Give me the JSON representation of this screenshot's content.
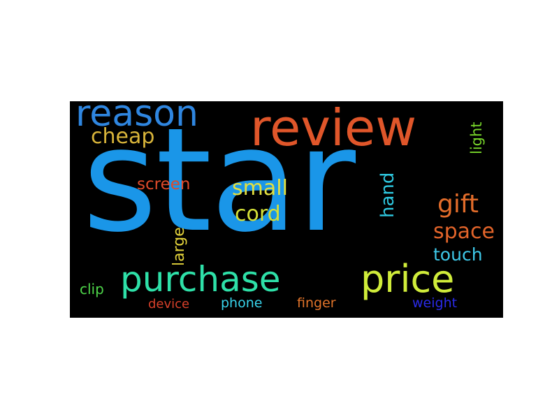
{
  "wordcloud": {
    "background": "#000000",
    "words": [
      {
        "text": "star",
        "color": "#1a96e8",
        "orientation": "horizontal"
      },
      {
        "text": "review",
        "color": "#e0562a",
        "orientation": "horizontal"
      },
      {
        "text": "reason",
        "color": "#2f86e0",
        "orientation": "horizontal"
      },
      {
        "text": "cheap",
        "color": "#d8b43a",
        "orientation": "horizontal"
      },
      {
        "text": "light",
        "color": "#78d62a",
        "orientation": "vertical"
      },
      {
        "text": "screen",
        "color": "#de4a2a",
        "orientation": "horizontal"
      },
      {
        "text": "small",
        "color": "#e2e040",
        "orientation": "horizontal"
      },
      {
        "text": "hand",
        "color": "#2ec8e0",
        "orientation": "vertical"
      },
      {
        "text": "gift",
        "color": "#e26c2a",
        "orientation": "horizontal"
      },
      {
        "text": "cord",
        "color": "#d4e038",
        "orientation": "horizontal"
      },
      {
        "text": "large",
        "color": "#e2d23a",
        "orientation": "vertical"
      },
      {
        "text": "space",
        "color": "#e2642a",
        "orientation": "horizontal"
      },
      {
        "text": "touch",
        "color": "#3ec8e8",
        "orientation": "horizontal"
      },
      {
        "text": "purchase",
        "color": "#2ee0a8",
        "orientation": "horizontal"
      },
      {
        "text": "price",
        "color": "#d0ec3a",
        "orientation": "horizontal"
      },
      {
        "text": "clip",
        "color": "#4ed64a",
        "orientation": "horizontal"
      },
      {
        "text": "device",
        "color": "#d8402a",
        "orientation": "horizontal"
      },
      {
        "text": "phone",
        "color": "#38d4ec",
        "orientation": "horizontal"
      },
      {
        "text": "finger",
        "color": "#e2742a",
        "orientation": "horizontal"
      },
      {
        "text": "weight",
        "color": "#2a2ae8",
        "orientation": "horizontal"
      }
    ]
  }
}
